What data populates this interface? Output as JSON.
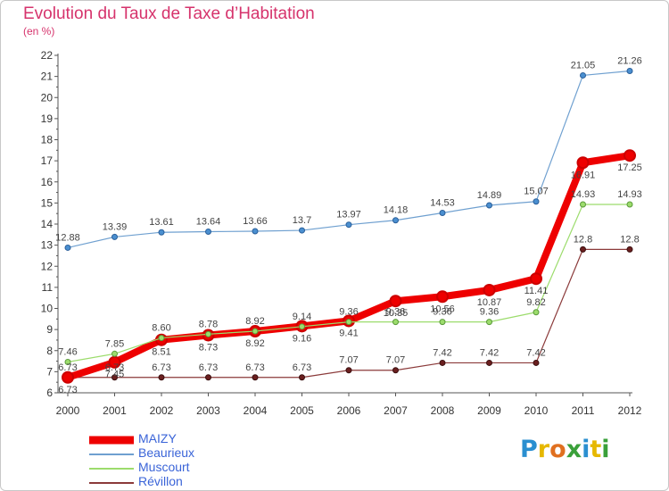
{
  "chart_data": {
    "type": "line",
    "title": "Evolution du Taux de Taxe d’Habitation",
    "subtitle": "(en %)",
    "x": [
      "2000",
      "2001",
      "2002",
      "2003",
      "2004",
      "2005",
      "2006",
      "2007",
      "2008",
      "2009",
      "2010",
      "2011",
      "2012"
    ],
    "ylim": [
      6,
      22
    ],
    "yticks": [
      "6",
      "7",
      "8",
      "9",
      "10",
      "11",
      "12",
      "13",
      "14",
      "15",
      "16",
      "17",
      "18",
      "19",
      "20",
      "21",
      "22"
    ],
    "grid": false,
    "legend_position": "bottom-left",
    "series": [
      {
        "name": "MAIZY",
        "color": "#ee0000",
        "values": [
          6.73,
          7.45,
          8.51,
          8.73,
          8.92,
          9.16,
          9.41,
          10.35,
          10.56,
          10.87,
          11.41,
          16.91,
          17.25
        ],
        "labels": [
          "6.73",
          "7.45",
          "8.51",
          "8.73",
          "8.92",
          "9.16",
          "9.41",
          "10.35",
          "10.56",
          "10.87",
          "11.41",
          "16.91",
          "17.25"
        ]
      },
      {
        "name": "Beaurieux",
        "color": "#6fa0d0",
        "values": [
          12.88,
          13.39,
          13.61,
          13.64,
          13.66,
          13.7,
          13.97,
          14.18,
          14.53,
          14.89,
          15.07,
          21.05,
          21.26
        ],
        "labels": [
          "12.88",
          "13.39",
          "13.61",
          "13.64",
          "13.66",
          "13.7",
          "13.97",
          "14.18",
          "14.53",
          "14.89",
          "15.07",
          "21.05",
          "21.26"
        ]
      },
      {
        "name": "Muscourt",
        "color": "#9cdc6c",
        "values": [
          7.46,
          7.85,
          8.6,
          8.78,
          8.92,
          9.14,
          9.36,
          9.36,
          9.36,
          9.36,
          9.82,
          14.93,
          14.93
        ],
        "labels": [
          "7.46",
          "7.85",
          "8.60",
          "8.78",
          "8.92",
          "9.14",
          "9.36",
          "9.36",
          "9.36",
          "9.36",
          "9.82",
          "14.93",
          "14.93"
        ]
      },
      {
        "name": "Révillon",
        "color": "#8b3a3a",
        "values": [
          6.73,
          6.73,
          6.73,
          6.73,
          6.73,
          6.73,
          7.07,
          7.07,
          7.42,
          7.42,
          7.42,
          12.8,
          12.8
        ],
        "labels": [
          "6.73",
          "6.73",
          "6.73",
          "6.73",
          "6.73",
          "6.73",
          "7.07",
          "7.07",
          "7.42",
          "7.42",
          "7.42",
          "12.8",
          "12.8"
        ]
      }
    ]
  },
  "logo": {
    "letters": [
      "P",
      "r",
      "o",
      "x",
      "i",
      "t",
      "i"
    ],
    "colors": [
      "#2a8fd0",
      "#e6b800",
      "#e07020",
      "#3aa03a",
      "#2a8fd0",
      "#e6b800",
      "#3aa03a"
    ]
  }
}
